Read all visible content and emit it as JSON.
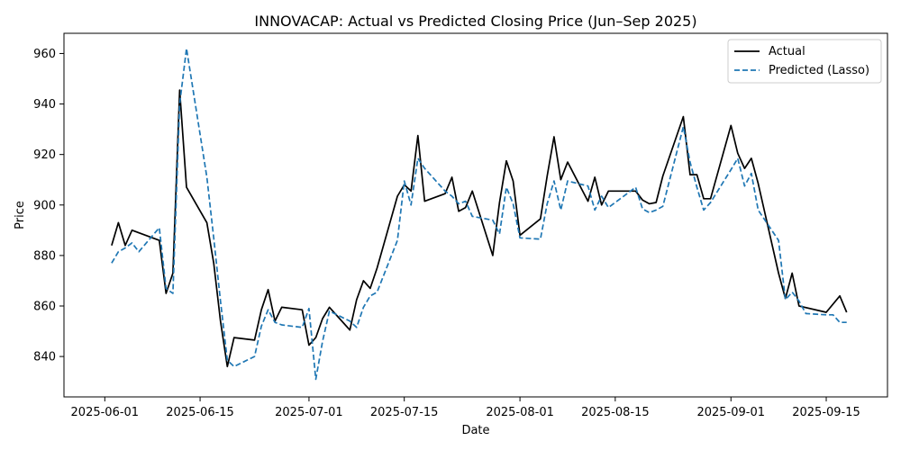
{
  "chart_data": {
    "type": "line",
    "title": "INNOVACAP: Actual vs Predicted Closing Price (Jun–Sep 2025)",
    "xlabel": "Date",
    "ylabel": "Price",
    "xlim": [
      "2025-05-26",
      "2025-09-24"
    ],
    "ylim": [
      824,
      968
    ],
    "x_ticks": [
      "2025-06-01",
      "2025-06-15",
      "2025-07-01",
      "2025-07-15",
      "2025-08-01",
      "2025-08-15",
      "2025-09-01",
      "2025-09-15"
    ],
    "y_ticks": [
      840,
      860,
      880,
      900,
      920,
      940,
      960
    ],
    "legend": {
      "position": "top-right"
    },
    "series": [
      {
        "name": "Actual",
        "color": "#000000",
        "style": "solid",
        "points": [
          [
            "2025-06-02",
            884.0
          ],
          [
            "2025-06-03",
            893.0
          ],
          [
            "2025-06-04",
            884.0
          ],
          [
            "2025-06-05",
            890.0
          ],
          [
            "2025-06-09",
            886.0
          ],
          [
            "2025-06-10",
            865.0
          ],
          [
            "2025-06-11",
            873.0
          ],
          [
            "2025-06-12",
            945.5
          ],
          [
            "2025-06-13",
            907.0
          ],
          [
            "2025-06-16",
            893.0
          ],
          [
            "2025-06-17",
            877.0
          ],
          [
            "2025-06-18",
            854.0
          ],
          [
            "2025-06-19",
            836.0
          ],
          [
            "2025-06-20",
            847.5
          ],
          [
            "2025-06-23",
            846.5
          ],
          [
            "2025-06-24",
            858.5
          ],
          [
            "2025-06-25",
            866.5
          ],
          [
            "2025-06-26",
            854.0
          ],
          [
            "2025-06-27",
            859.5
          ],
          [
            "2025-06-30",
            858.5
          ],
          [
            "2025-07-01",
            844.5
          ],
          [
            "2025-07-02",
            847.5
          ],
          [
            "2025-07-03",
            855.0
          ],
          [
            "2025-07-04",
            859.5
          ],
          [
            "2025-07-07",
            850.5
          ],
          [
            "2025-07-08",
            862.5
          ],
          [
            "2025-07-09",
            870.0
          ],
          [
            "2025-07-10",
            867.0
          ],
          [
            "2025-07-11",
            875.0
          ],
          [
            "2025-07-14",
            903.5
          ],
          [
            "2025-07-15",
            908.0
          ],
          [
            "2025-07-16",
            905.5
          ],
          [
            "2025-07-17",
            927.5
          ],
          [
            "2025-07-18",
            901.5
          ],
          [
            "2025-07-21",
            904.5
          ],
          [
            "2025-07-22",
            911.0
          ],
          [
            "2025-07-23",
            897.5
          ],
          [
            "2025-07-24",
            899.0
          ],
          [
            "2025-07-25",
            905.5
          ],
          [
            "2025-07-28",
            880.0
          ],
          [
            "2025-07-29",
            901.0
          ],
          [
            "2025-07-30",
            917.5
          ],
          [
            "2025-07-31",
            909.5
          ],
          [
            "2025-08-01",
            888.0
          ],
          [
            "2025-08-04",
            894.5
          ],
          [
            "2025-08-05",
            911.5
          ],
          [
            "2025-08-06",
            927.0
          ],
          [
            "2025-08-07",
            910.0
          ],
          [
            "2025-08-08",
            917.0
          ],
          [
            "2025-08-11",
            901.5
          ],
          [
            "2025-08-12",
            911.0
          ],
          [
            "2025-08-13",
            900.0
          ],
          [
            "2025-08-14",
            905.5
          ],
          [
            "2025-08-18",
            905.5
          ],
          [
            "2025-08-19",
            902.0
          ],
          [
            "2025-08-20",
            900.5
          ],
          [
            "2025-08-21",
            901.0
          ],
          [
            "2025-08-22",
            911.5
          ],
          [
            "2025-08-25",
            935.0
          ],
          [
            "2025-08-26",
            912.0
          ],
          [
            "2025-08-27",
            912.0
          ],
          [
            "2025-08-28",
            902.5
          ],
          [
            "2025-08-29",
            902.5
          ],
          [
            "2025-09-01",
            931.5
          ],
          [
            "2025-09-02",
            920.5
          ],
          [
            "2025-09-03",
            914.5
          ],
          [
            "2025-09-04",
            918.5
          ],
          [
            "2025-09-05",
            908.5
          ],
          [
            "2025-09-08",
            873.0
          ],
          [
            "2025-09-09",
            863.0
          ],
          [
            "2025-09-10",
            873.0
          ],
          [
            "2025-09-11",
            860.0
          ],
          [
            "2025-09-15",
            857.5
          ],
          [
            "2025-09-17",
            864.0
          ],
          [
            "2025-09-18",
            857.5
          ]
        ]
      },
      {
        "name": "Predicted (Lasso)",
        "color": "#1f77b4",
        "style": "dashed",
        "points": [
          [
            "2025-06-02",
            877.0
          ],
          [
            "2025-06-03",
            881.5
          ],
          [
            "2025-06-04",
            883.0
          ],
          [
            "2025-06-05",
            885.0
          ],
          [
            "2025-06-06",
            881.5
          ],
          [
            "2025-06-09",
            891.0
          ],
          [
            "2025-06-10",
            867.0
          ],
          [
            "2025-06-11",
            865.0
          ],
          [
            "2025-06-12",
            940.0
          ],
          [
            "2025-06-13",
            962.0
          ],
          [
            "2025-06-16",
            911.0
          ],
          [
            "2025-06-17",
            887.0
          ],
          [
            "2025-06-18",
            862.0
          ],
          [
            "2025-06-19",
            838.5
          ],
          [
            "2025-06-20",
            836.0
          ],
          [
            "2025-06-23",
            840.0
          ],
          [
            "2025-06-24",
            852.0
          ],
          [
            "2025-06-25",
            858.5
          ],
          [
            "2025-06-26",
            853.5
          ],
          [
            "2025-06-27",
            852.5
          ],
          [
            "2025-06-30",
            851.5
          ],
          [
            "2025-07-01",
            859.0
          ],
          [
            "2025-07-02",
            831.0
          ],
          [
            "2025-07-03",
            846.0
          ],
          [
            "2025-07-04",
            858.0
          ],
          [
            "2025-07-07",
            854.0
          ],
          [
            "2025-07-08",
            851.5
          ],
          [
            "2025-07-09",
            859.5
          ],
          [
            "2025-07-10",
            864.0
          ],
          [
            "2025-07-11",
            865.5
          ],
          [
            "2025-07-14",
            886.0
          ],
          [
            "2025-07-15",
            909.5
          ],
          [
            "2025-07-16",
            900.0
          ],
          [
            "2025-07-17",
            918.5
          ],
          [
            "2025-07-18",
            914.5
          ],
          [
            "2025-07-21",
            905.5
          ],
          [
            "2025-07-22",
            903.5
          ],
          [
            "2025-07-23",
            900.5
          ],
          [
            "2025-07-24",
            901.5
          ],
          [
            "2025-07-25",
            895.5
          ],
          [
            "2025-07-28",
            894.0
          ],
          [
            "2025-07-29",
            888.5
          ],
          [
            "2025-07-30",
            907.0
          ],
          [
            "2025-07-31",
            900.5
          ],
          [
            "2025-08-01",
            887.0
          ],
          [
            "2025-08-04",
            886.5
          ],
          [
            "2025-08-05",
            900.5
          ],
          [
            "2025-08-06",
            909.5
          ],
          [
            "2025-08-07",
            898.0
          ],
          [
            "2025-08-08",
            909.5
          ],
          [
            "2025-08-11",
            907.5
          ],
          [
            "2025-08-12",
            898.0
          ],
          [
            "2025-08-13",
            903.5
          ],
          [
            "2025-08-14",
            899.0
          ],
          [
            "2025-08-18",
            907.0
          ],
          [
            "2025-08-19",
            898.5
          ],
          [
            "2025-08-20",
            897.0
          ],
          [
            "2025-08-21",
            898.0
          ],
          [
            "2025-08-22",
            899.5
          ],
          [
            "2025-08-25",
            931.0
          ],
          [
            "2025-08-26",
            917.0
          ],
          [
            "2025-08-27",
            907.0
          ],
          [
            "2025-08-28",
            898.0
          ],
          [
            "2025-08-29",
            901.0
          ],
          [
            "2025-09-01",
            914.0
          ],
          [
            "2025-09-02",
            918.5
          ],
          [
            "2025-09-03",
            907.5
          ],
          [
            "2025-09-04",
            912.5
          ],
          [
            "2025-09-05",
            898.0
          ],
          [
            "2025-09-08",
            886.0
          ],
          [
            "2025-09-09",
            862.5
          ],
          [
            "2025-09-10",
            865.5
          ],
          [
            "2025-09-11",
            862.0
          ],
          [
            "2025-09-12",
            857.0
          ],
          [
            "2025-09-15",
            856.5
          ],
          [
            "2025-09-16",
            856.5
          ],
          [
            "2025-09-17",
            853.5
          ],
          [
            "2025-09-18",
            853.5
          ]
        ]
      }
    ]
  }
}
